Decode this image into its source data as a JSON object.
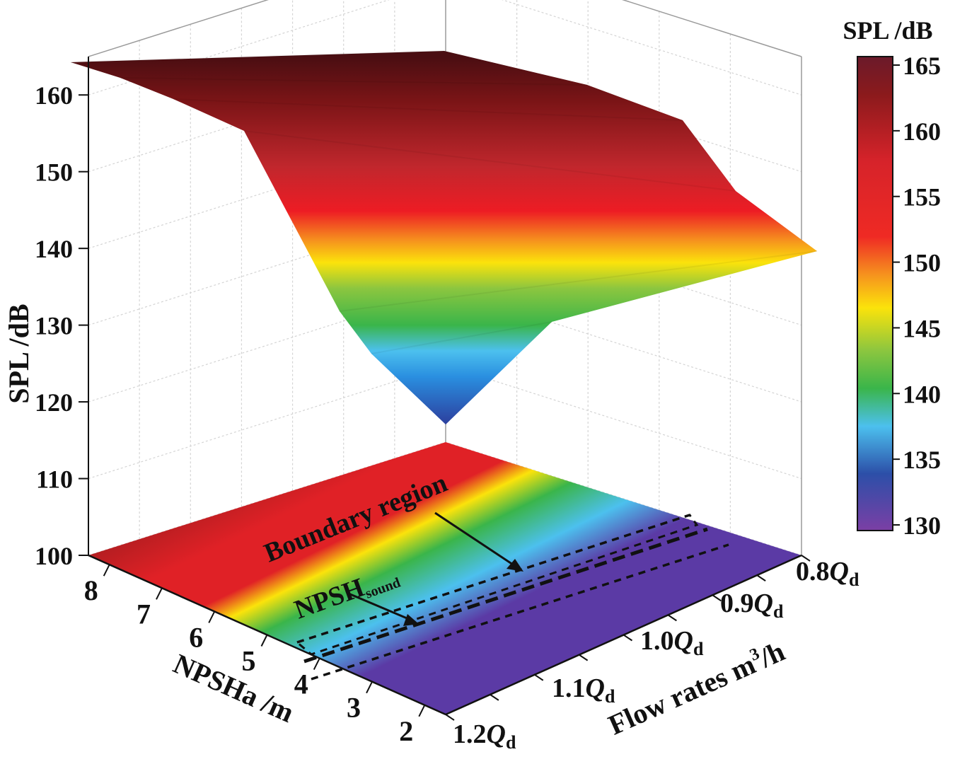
{
  "chart_data": {
    "type": "surface3d",
    "z_axis": {
      "label": "SPL /dB",
      "range": [
        100,
        165
      ],
      "ticks": [
        100,
        110,
        120,
        130,
        140,
        150,
        160
      ]
    },
    "y_axis": {
      "label": "NPSHa /m",
      "ticks": [
        "8",
        "7",
        "6",
        "5",
        "4",
        "3",
        "2"
      ]
    },
    "x_axis": {
      "label_prefix": "Flow rates m",
      "label_sup": "3",
      "label_suffix": "/h",
      "ticks": [
        {
          "coef": "0.8",
          "q": "Q",
          "sub": "d"
        },
        {
          "coef": "0.9",
          "q": "Q",
          "sub": "d"
        },
        {
          "coef": "1.0",
          "q": "Q",
          "sub": "d"
        },
        {
          "coef": "1.1",
          "q": "Q",
          "sub": "d"
        },
        {
          "coef": "1.2",
          "q": "Q",
          "sub": "d"
        }
      ]
    },
    "colorbar": {
      "title": "SPL /dB",
      "range": [
        130,
        165
      ],
      "ticks": [
        165,
        160,
        155,
        150,
        145,
        140,
        135,
        130
      ]
    },
    "annotations": {
      "boundary_region": "Boundary region",
      "npsh_main": "NPSH",
      "npsh_sub": "sound"
    },
    "surface_profile": {
      "npsha_front_to_back": [
        2,
        3,
        4,
        5,
        6,
        7,
        8
      ],
      "spl_at_1_2Qd": [
        118,
        127,
        133,
        147,
        156,
        160,
        164
      ],
      "spl_at_0_8Qd": [
        141,
        143,
        145,
        151,
        157,
        160,
        163
      ]
    },
    "colors": {
      "colormap": [
        "#6b2fa0",
        "#2c3f9e",
        "#2a8fe0",
        "#4cc0ee",
        "#3ab54a",
        "#8cc63f",
        "#fbe30b",
        "#f6921e",
        "#ed1c24",
        "#c1272d",
        "#7a1416",
        "#4a0e12"
      ]
    }
  }
}
